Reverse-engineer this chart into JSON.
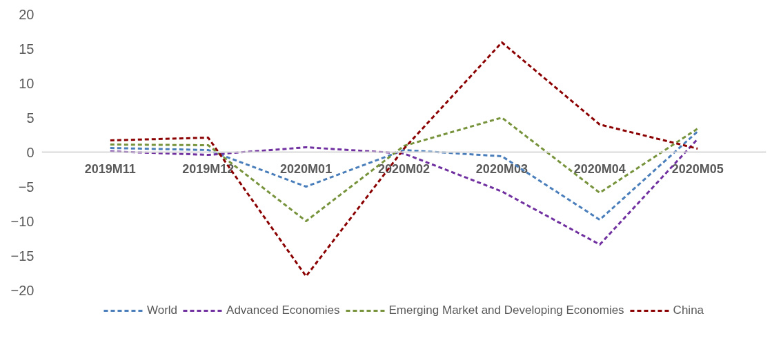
{
  "chart_data": {
    "type": "line",
    "categories": [
      "2019M11",
      "2019M12",
      "2020M01",
      "2020M02",
      "2020M03",
      "2020M04",
      "2020M05"
    ],
    "series": [
      {
        "name": "World",
        "color": "#4a7ebb",
        "values": [
          0.6,
          0.3,
          -5.0,
          0.3,
          -0.6,
          -9.8,
          3.0
        ]
      },
      {
        "name": "Advanced Economies",
        "color": "#7030a0",
        "values": [
          0.1,
          -0.4,
          0.7,
          -0.2,
          -5.7,
          -13.4,
          1.9
        ]
      },
      {
        "name": "Emerging Market and Developing Economies",
        "color": "#77933c",
        "values": [
          1.1,
          1.0,
          -10.0,
          0.9,
          5.0,
          -5.9,
          3.4
        ]
      },
      {
        "name": "China",
        "color": "#8b0000",
        "values": [
          1.7,
          2.1,
          -18.0,
          0.5,
          15.9,
          4.0,
          0.5
        ]
      }
    ],
    "ylim": [
      -20,
      20
    ],
    "yticks": [
      -20,
      -15,
      -10,
      -5,
      0,
      5,
      10,
      15,
      20
    ],
    "grid": false,
    "legend": "bottom",
    "line_style": "dashed",
    "marker": "none"
  }
}
